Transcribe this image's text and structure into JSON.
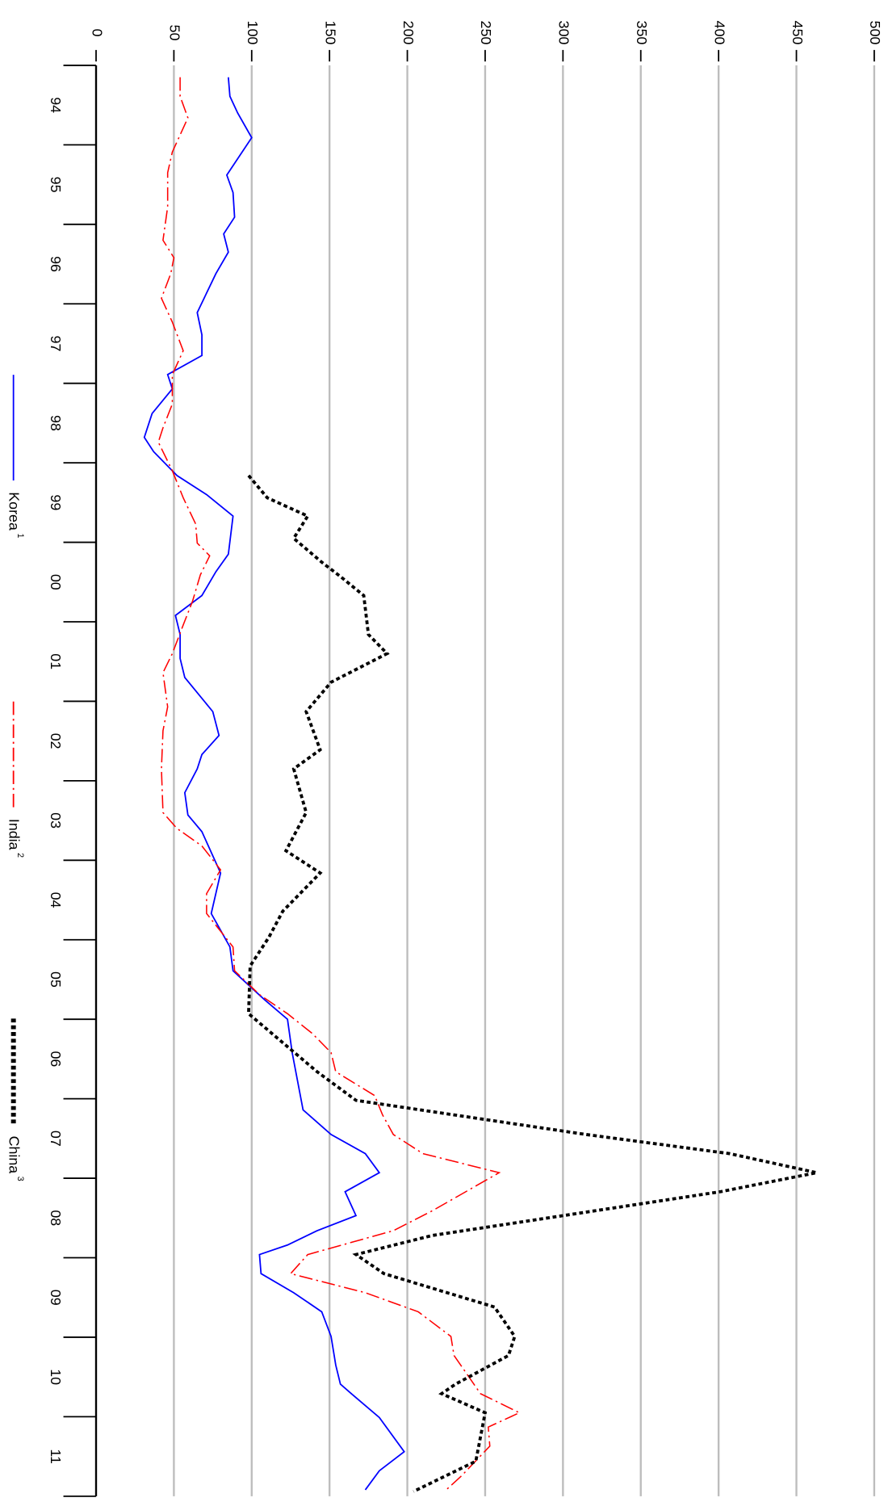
{
  "chart_data": {
    "type": "line",
    "xlim": [
      1994,
      2012
    ],
    "xticks": [
      1994,
      1995,
      1996,
      1997,
      1998,
      1999,
      2000,
      2001,
      2002,
      2003,
      2004,
      2005,
      2006,
      2007,
      2008,
      2009,
      2010,
      2011,
      2012
    ],
    "categories": [
      "94",
      "95",
      "96",
      "97",
      "98",
      "99",
      "00",
      "01",
      "02",
      "03",
      "04",
      "05",
      "06",
      "07",
      "08",
      "09",
      "10",
      "11"
    ],
    "ylim": [
      0,
      500
    ],
    "yticks": [
      0,
      50,
      100,
      150,
      200,
      250,
      300,
      350,
      400,
      450,
      500
    ],
    "grid": true,
    "series": [
      {
        "name": "Korea",
        "note": "1",
        "color": "#0000ff",
        "dash": "solid",
        "x": [
          1994.15,
          1994.39,
          1994.6,
          1994.91,
          1995.38,
          1995.6,
          1995.91,
          1996.12,
          1996.35,
          1996.62,
          1997.11,
          1997.39,
          1997.65,
          1997.89,
          1998.07,
          1998.38,
          1998.68,
          1998.86,
          1999.16,
          1999.4,
          1999.67,
          2000.15,
          2000.37,
          2000.67,
          2000.92,
          2001.16,
          2001.46,
          2001.7,
          2002.13,
          2002.43,
          2002.67,
          2002.85,
          2003.15,
          2003.43,
          2003.64,
          2004.16,
          2004.67,
          2005.09,
          2005.39,
          2005.75,
          2006.0,
          2006.42,
          2007.14,
          2007.45,
          2007.69,
          2007.93,
          2008.17,
          2008.47,
          2008.66,
          2008.84,
          2008.96,
          2009.2,
          2009.44,
          2009.68,
          2009.99,
          2010.35,
          2010.59,
          2010.71,
          2011.01,
          2011.44,
          2011.68,
          2011.92
        ],
        "values": [
          85,
          86,
          91,
          100,
          84,
          88,
          89,
          82,
          85,
          77,
          65,
          68,
          68,
          46,
          49,
          36,
          31,
          37,
          52,
          71,
          88,
          85,
          77,
          68,
          51,
          54,
          54,
          57,
          75,
          79,
          68,
          65,
          57,
          59,
          68,
          80,
          74,
          86,
          88,
          108,
          123,
          126,
          133,
          151,
          173,
          182,
          160,
          167,
          142,
          123,
          105,
          106,
          127,
          145,
          151,
          154,
          157,
          164,
          182,
          198,
          182,
          173
        ]
      },
      {
        "name": "India",
        "note": "2",
        "color": "#ff0000",
        "dash": "long",
        "x": [
          1994.15,
          1994.39,
          1994.66,
          1995.09,
          1995.35,
          1995.78,
          1996.2,
          1996.42,
          1996.62,
          1996.93,
          1997.23,
          1997.59,
          1997.89,
          1998.26,
          1998.56,
          1998.74,
          1999.1,
          1999.44,
          1999.77,
          2000.01,
          2000.17,
          2000.41,
          2000.74,
          2001.04,
          2001.4,
          2001.64,
          2002.07,
          2002.37,
          2002.85,
          2003.4,
          2003.6,
          2003.82,
          2004.12,
          2004.42,
          2004.67,
          2005.09,
          2005.39,
          2005.69,
          2005.93,
          2006.18,
          2006.42,
          2006.66,
          2006.96,
          2007.2,
          2007.45,
          2007.69,
          2007.93,
          2008.41,
          2008.66,
          2008.96,
          2009.2,
          2009.44,
          2009.68,
          2009.99,
          2010.23,
          2010.71,
          2010.95,
          2011.13,
          2011.37,
          2011.74,
          2011.92
        ],
        "values": [
          54,
          54,
          59,
          49,
          46,
          46,
          43,
          50,
          48,
          42,
          49,
          56,
          49,
          49,
          43,
          40,
          49,
          56,
          64,
          65,
          73,
          67,
          62,
          56,
          49,
          43,
          46,
          43,
          42,
          43,
          52,
          68,
          80,
          71,
          71,
          88,
          89,
          105,
          123,
          139,
          151,
          154,
          179,
          184,
          191,
          210,
          259,
          216,
          191,
          136,
          125,
          173,
          207,
          228,
          230,
          247,
          272,
          252,
          253,
          235,
          225
        ]
      },
      {
        "name": "China",
        "note": "3",
        "color": "#000000",
        "dash": "dotted",
        "x": [
          1999.16,
          1999.44,
          1999.67,
          1999.95,
          2000.25,
          2000.43,
          2000.67,
          2001.16,
          2001.4,
          2001.76,
          2002.13,
          2002.61,
          2002.85,
          2003.4,
          2003.88,
          2004.16,
          2004.64,
          2004.97,
          2005.33,
          2005.93,
          2006.66,
          2007.02,
          2007.45,
          2007.69,
          2007.93,
          2008.17,
          2008.72,
          2008.96,
          2009.2,
          2009.62,
          2009.99,
          2010.23,
          2010.59,
          2010.71,
          2010.95,
          2011.56,
          2011.94
        ],
        "values": [
          98,
          110,
          136,
          127,
          145,
          157,
          172,
          175,
          187,
          151,
          135,
          144,
          127,
          135,
          122,
          144,
          120,
          111,
          99,
          98,
          142,
          167,
          315,
          407,
          463,
          401,
          216,
          167,
          185,
          256,
          269,
          265,
          231,
          222,
          250,
          244,
          204
        ]
      }
    ]
  }
}
